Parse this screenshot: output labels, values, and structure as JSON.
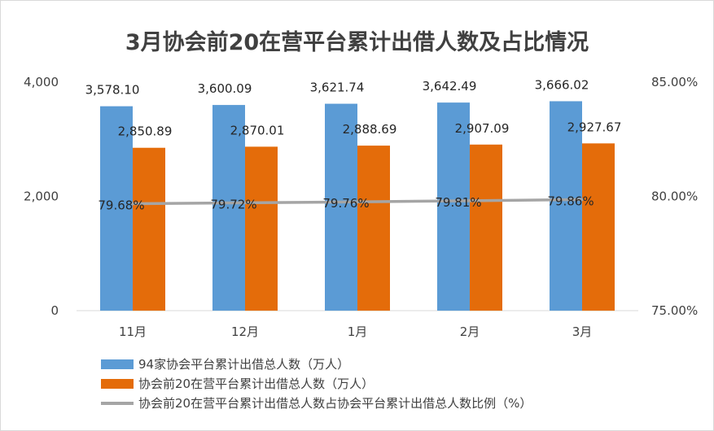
{
  "title": "3月协会前20在营平台累计出借人数及占比情况",
  "chart_data": {
    "type": "bar",
    "categories": [
      "11月",
      "12月",
      "1月",
      "2月",
      "3月"
    ],
    "series": [
      {
        "name": "94家协会平台累计出借总人数（万人）",
        "type": "bar",
        "axis": "left",
        "color": "#5b9bd5",
        "values": [
          3578.1,
          3600.09,
          3621.74,
          3642.49,
          3666.02
        ],
        "labels": [
          "3,578.10",
          "3,600.09",
          "3,621.74",
          "3,642.49",
          "3,666.02"
        ]
      },
      {
        "name": "协会前20在营平台累计出借总人数（万人）",
        "type": "bar",
        "axis": "left",
        "color": "#e46c0a",
        "values": [
          2850.89,
          2870.01,
          2888.69,
          2907.09,
          2927.67
        ],
        "labels": [
          "2,850.89",
          "2,870.01",
          "2,888.69",
          "2,907.09",
          "2,927.67"
        ]
      },
      {
        "name": "协会前20在营平台累计出借总人数占协会平台累计出借总人数比例（%）",
        "type": "line",
        "axis": "right",
        "color": "#a5a5a5",
        "values": [
          79.68,
          79.72,
          79.76,
          79.81,
          79.86
        ],
        "labels": [
          "79.68%",
          "79.72%",
          "79.76%",
          "79.81%",
          "79.86%"
        ]
      }
    ],
    "y_left": {
      "range": [
        0,
        4000
      ],
      "ticks": [
        "0",
        "2,000",
        "4,000"
      ],
      "tick_values": [
        0,
        2000,
        4000
      ]
    },
    "y_right": {
      "range": [
        75,
        85
      ],
      "ticks": [
        "75.00%",
        "80.00%",
        "85.00%"
      ],
      "tick_values": [
        75,
        80,
        85
      ]
    },
    "legend_position": "bottom",
    "grid": false
  }
}
